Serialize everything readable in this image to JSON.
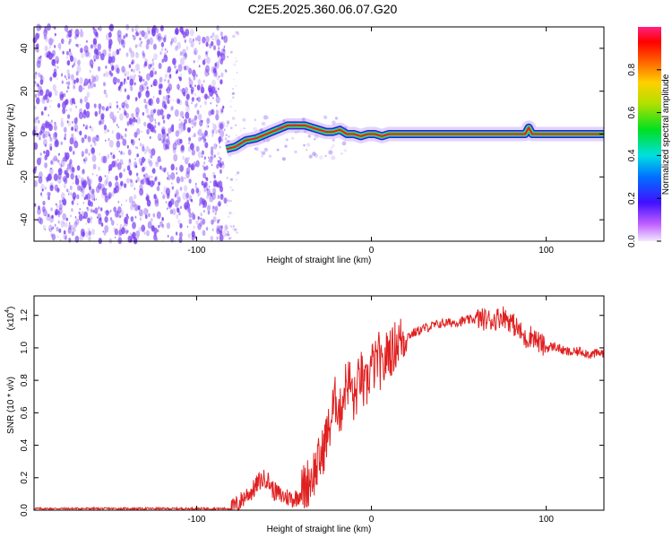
{
  "title": "C2E5.2025.360.06.07.G20",
  "colors": {
    "snr_line": "#e02020",
    "noise_dots": "#7a3ff0",
    "trace_core": "#ff1030",
    "trace_edge": "#14c8c8"
  },
  "chart_data": [
    {
      "type": "heatmap",
      "xlabel": "Height of straight line (km)",
      "ylabel": "Frequency (Hz)",
      "xlim": [
        -193,
        133
      ],
      "ylim": [
        -50,
        50
      ],
      "xticks": [
        -100,
        0,
        100
      ],
      "xtick_labels": [
        "-100",
        "0",
        "100"
      ],
      "yticks": [
        -40,
        -20,
        0,
        20,
        40
      ],
      "ytick_labels": [
        "-40",
        "-20",
        "0",
        "20",
        "40"
      ],
      "grid": false,
      "noise_region": {
        "x_range": [
          -193,
          -83
        ],
        "amplitude": 0.15
      },
      "ridge": {
        "x": [
          -83,
          -78,
          -72,
          -66,
          -60,
          -54,
          -48,
          -42,
          -38,
          -34,
          -30,
          -26,
          -22,
          -18,
          -14,
          -10,
          -6,
          -2,
          2,
          6,
          10,
          14,
          20,
          40,
          60,
          80,
          88,
          90,
          92,
          110,
          133
        ],
        "freq": [
          -7,
          -6,
          -3,
          -2,
          0,
          2,
          4,
          4,
          4,
          3,
          2,
          1,
          1,
          2,
          0,
          0,
          -1,
          0,
          0,
          -1,
          0,
          0,
          0,
          0,
          0,
          0,
          0,
          3,
          0,
          0,
          0
        ]
      },
      "colorbar": {
        "label": "Normalized spectral amplitude",
        "range": [
          0,
          1
        ],
        "ticks": [
          0,
          0.2,
          0.4,
          0.6,
          0.8
        ],
        "tick_labels": [
          "0.0",
          "0.2",
          "0.4",
          "0.6",
          "0.8"
        ]
      }
    },
    {
      "type": "line",
      "xlabel": "Height of straight line (km)",
      "ylabel": "SNR (10 * v/v)",
      "multiplier_label": "(x10",
      "multiplier_exp": "4",
      "multiplier_close": ")",
      "xlim": [
        -193,
        133
      ],
      "ylim": [
        0,
        1.32
      ],
      "xticks": [
        -100,
        0,
        100
      ],
      "xtick_labels": [
        "-100",
        "0",
        "100"
      ],
      "yticks": [
        0,
        0.2,
        0.4,
        0.6,
        0.8,
        1.0,
        1.2
      ],
      "ytick_labels": [
        "0.0",
        "0.2",
        "0.4",
        "0.6",
        "0.8",
        "1.0",
        "1.2"
      ],
      "grid": false,
      "series": [
        {
          "x": [
            -193,
            -160,
            -130,
            -100,
            -90,
            -80,
            -76,
            -72,
            -68,
            -64,
            -60,
            -56,
            -52,
            -48,
            -44,
            -40,
            -36,
            -32,
            -28,
            -26,
            -24,
            -22,
            -20,
            -18,
            -16,
            -14,
            -12,
            -10,
            -8,
            -6,
            -4,
            -2,
            0,
            2,
            4,
            6,
            8,
            10,
            12,
            14,
            18,
            22,
            26,
            30,
            40,
            50,
            60,
            70,
            75,
            80,
            85,
            88,
            92,
            95,
            100,
            105,
            110,
            115,
            120,
            125,
            133
          ],
          "y": [
            0.01,
            0.01,
            0.01,
            0.01,
            0.01,
            0.01,
            0.04,
            0.09,
            0.12,
            0.18,
            0.2,
            0.12,
            0.09,
            0.08,
            0.07,
            0.11,
            0.18,
            0.25,
            0.35,
            0.45,
            0.5,
            0.62,
            0.7,
            0.58,
            0.72,
            0.8,
            0.78,
            0.66,
            0.76,
            0.85,
            0.72,
            0.8,
            0.9,
            0.88,
            0.96,
            0.84,
            0.93,
            1.0,
            0.97,
            1.03,
            1.06,
            1.08,
            1.1,
            1.12,
            1.15,
            1.16,
            1.18,
            1.17,
            1.2,
            1.16,
            1.1,
            1.05,
            1.08,
            1.04,
            1.0,
            1.01,
            0.98,
            0.97,
            0.98,
            0.96,
            0.97
          ]
        }
      ]
    }
  ]
}
